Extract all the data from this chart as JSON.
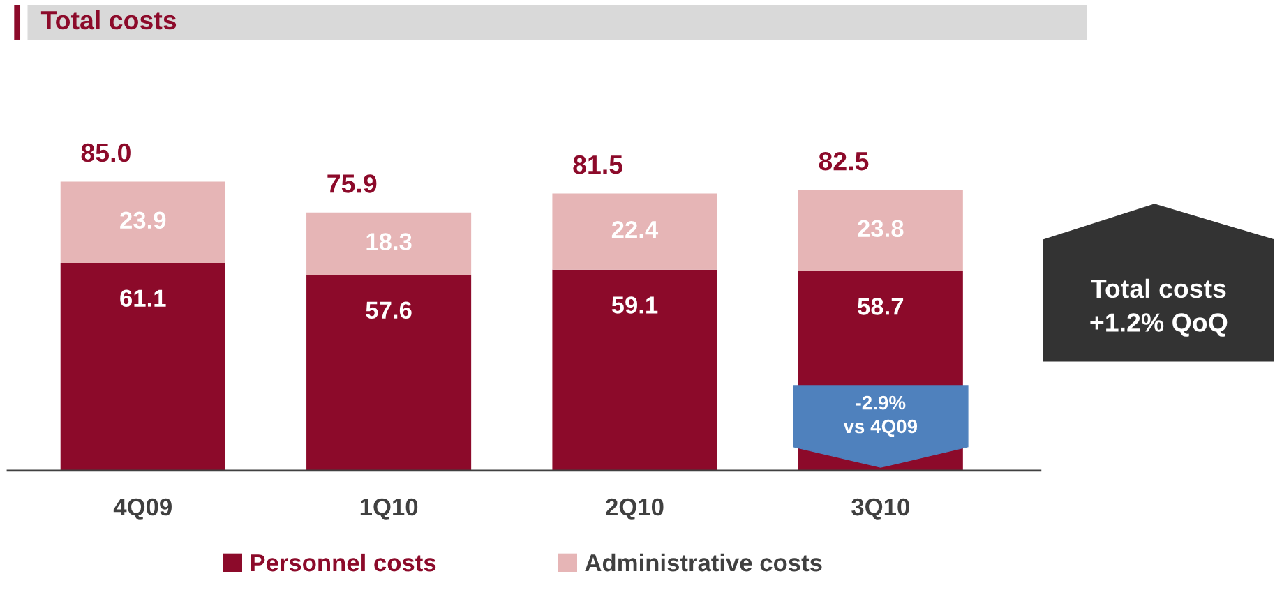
{
  "chart_data": {
    "type": "bar",
    "title": "Total costs",
    "stacked": true,
    "data_labels": true,
    "legend": "bottom",
    "categories": [
      "4Q09",
      "1Q10",
      "2Q10",
      "3Q10"
    ],
    "series": [
      {
        "name": "Personnel costs",
        "color": "#8c0a2a",
        "values": [
          61.1,
          57.6,
          59.1,
          58.7
        ]
      },
      {
        "name": "Administrative costs",
        "color": "#e6b5b6",
        "values": [
          23.9,
          18.3,
          22.4,
          23.8
        ]
      }
    ],
    "totals": [
      "85.0",
      "75.9",
      "81.5",
      "82.5"
    ],
    "annotations": [
      "-2.9%\nvs 4Q09",
      "Total costs\n+1.2% QoQ"
    ]
  }
}
